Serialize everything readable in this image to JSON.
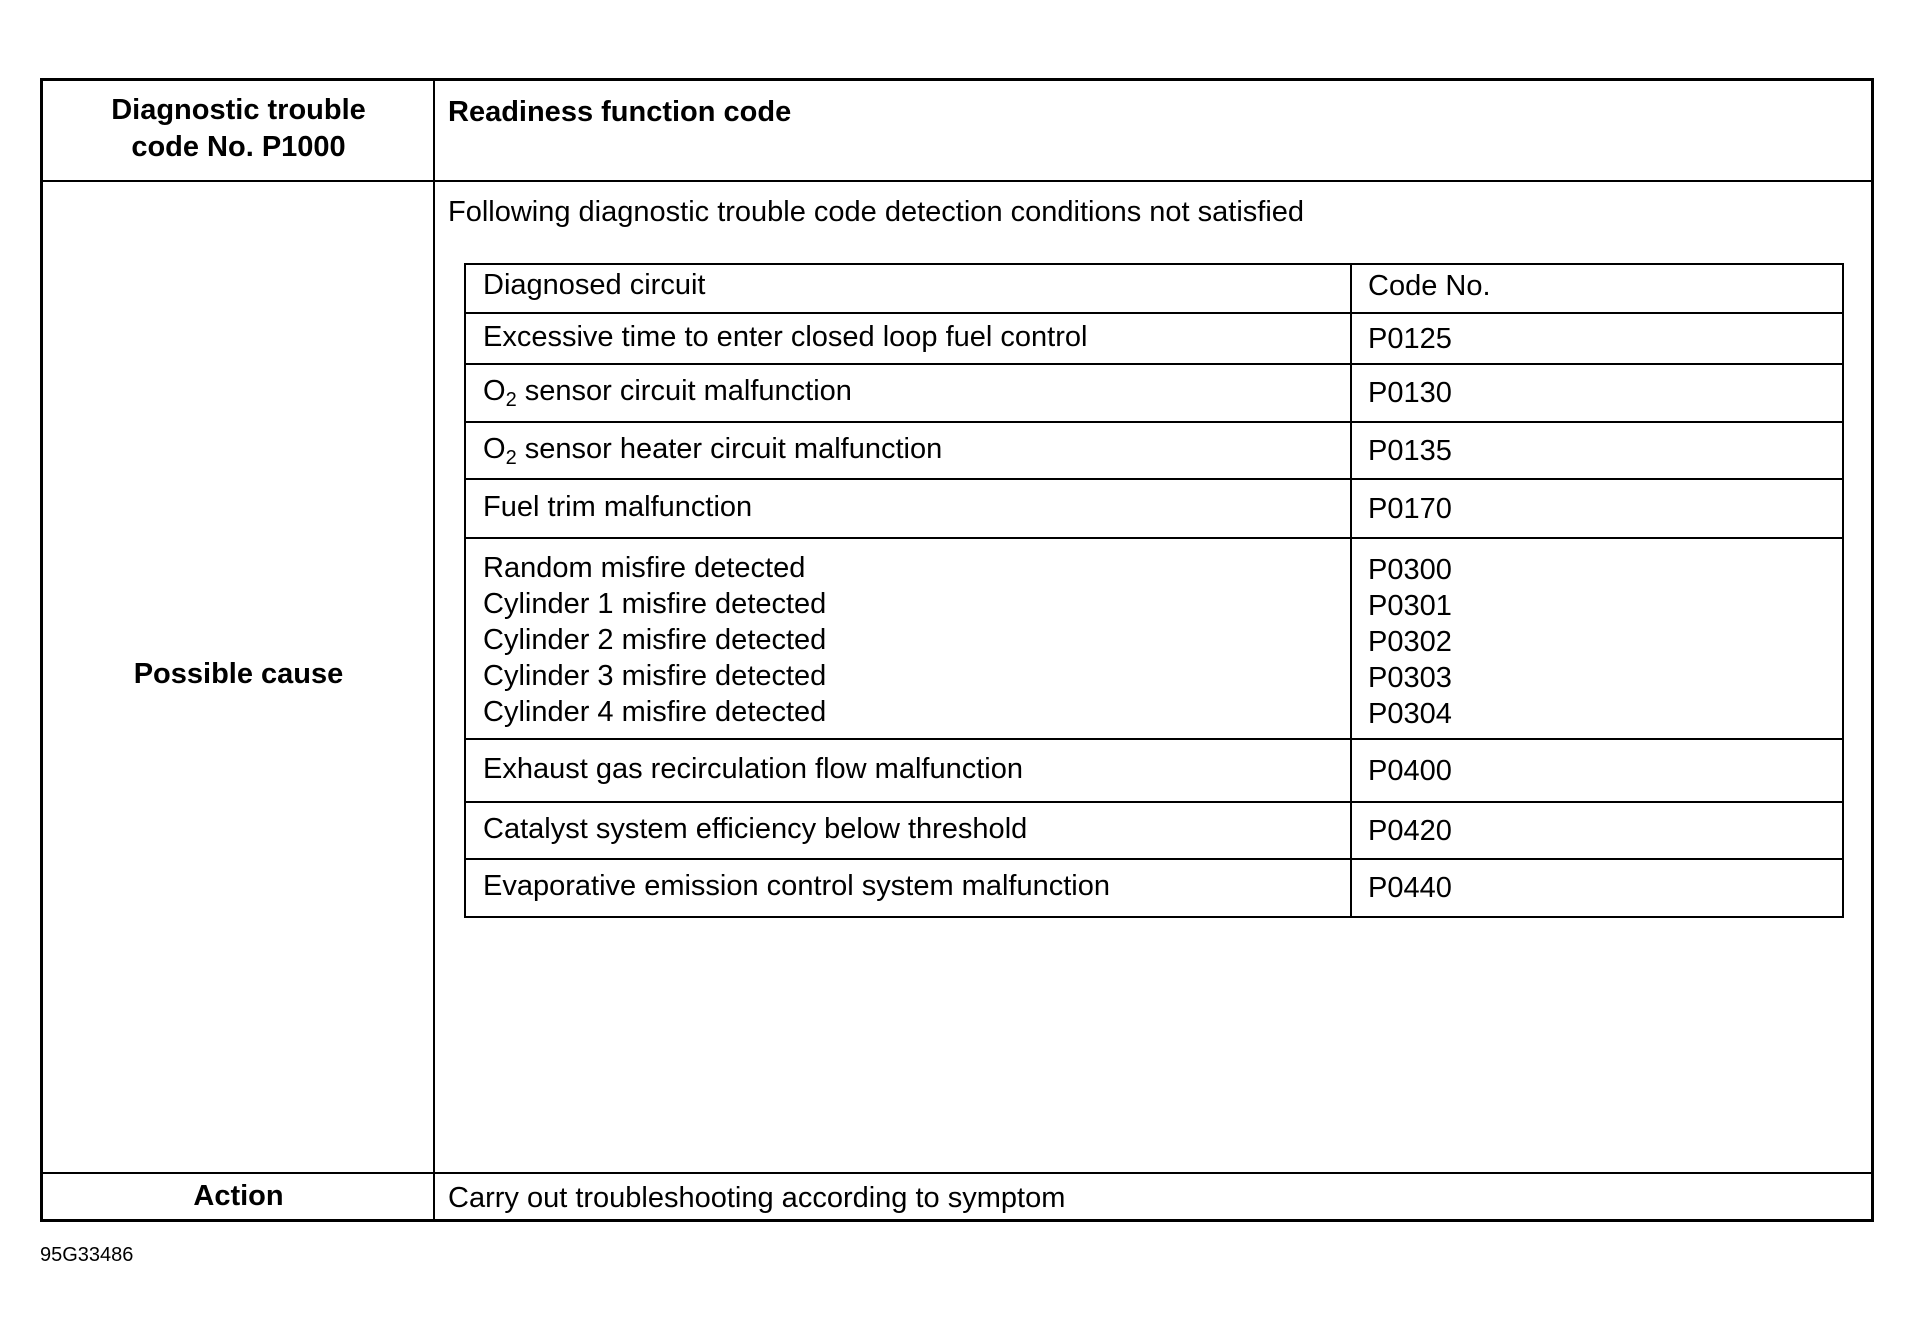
{
  "header": {
    "left": [
      "Diagnostic trouble",
      "code No. P1000"
    ],
    "right": "Readiness function code"
  },
  "possible_cause": {
    "label": "Possible cause",
    "intro": "Following diagnostic trouble code detection conditions not satisfied",
    "table": {
      "columns": [
        "Diagnosed circuit",
        "Code No."
      ],
      "rows": [
        {
          "circuit": [
            "Excessive time to enter closed loop fuel control"
          ],
          "codes": [
            "P0125"
          ]
        },
        {
          "circuit": [
            "O2 sensor circuit malfunction"
          ],
          "codes": [
            "P0130"
          ]
        },
        {
          "circuit": [
            "O2 sensor heater circuit malfunction"
          ],
          "codes": [
            "P0135"
          ]
        },
        {
          "circuit": [
            "Fuel trim malfunction"
          ],
          "codes": [
            "P0170"
          ]
        },
        {
          "circuit": [
            "Random misfire detected",
            "Cylinder 1 misfire detected",
            "Cylinder 2 misfire detected",
            "Cylinder 3 misfire detected",
            "Cylinder 4 misfire detected"
          ],
          "codes": [
            "P0300",
            "P0301",
            "P0302",
            "P0303",
            "P0304"
          ]
        },
        {
          "circuit": [
            "Exhaust gas recirculation flow malfunction"
          ],
          "codes": [
            "P0400"
          ]
        },
        {
          "circuit": [
            "Catalyst system efficiency below threshold"
          ],
          "codes": [
            "P0420"
          ]
        },
        {
          "circuit": [
            "Evaporative emission control system malfunction"
          ],
          "codes": [
            "P0440"
          ]
        }
      ]
    }
  },
  "action": {
    "label": "Action",
    "text": "Carry out troubleshooting according to symptom"
  },
  "figure_ref": "95G33486"
}
